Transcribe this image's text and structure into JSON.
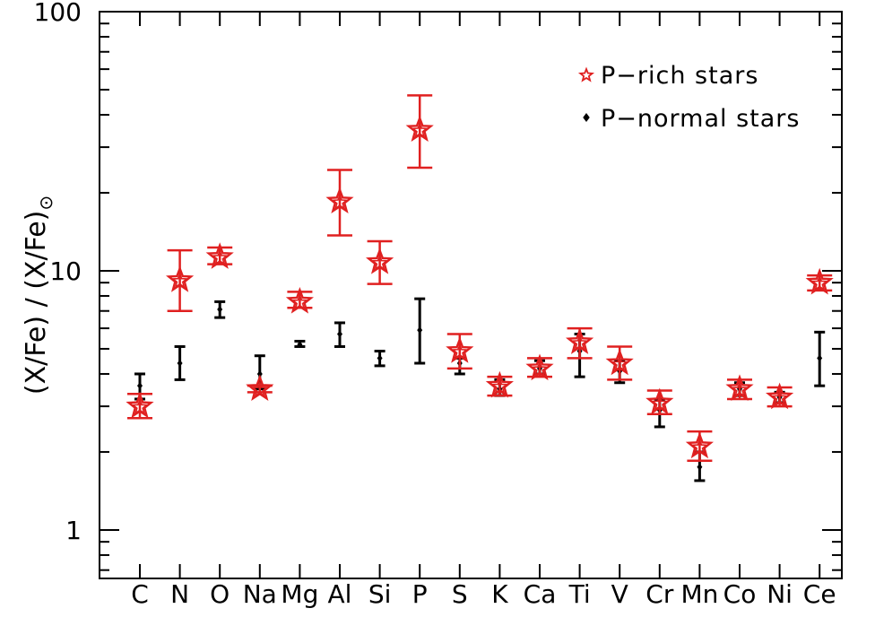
{
  "chart_data": {
    "type": "scatter",
    "ylabel_main": "(X/Fe) / (X/Fe)",
    "ylabel_sub": "⊙",
    "yscale": "log",
    "ylim": [
      0.65,
      100
    ],
    "yticks": [
      1,
      10,
      100
    ],
    "yticks_labels": [
      "1",
      "10",
      "100"
    ],
    "categories": [
      "C",
      "N",
      "O",
      "Na",
      "Mg",
      "Al",
      "Si",
      "P",
      "S",
      "K",
      "Ca",
      "Ti",
      "V",
      "Cr",
      "Mn",
      "Co",
      "Ni",
      "Ce"
    ],
    "legend_position": "top-right",
    "series": [
      {
        "name": "P−rich stars",
        "color": "#e02020",
        "marker": "star",
        "values": [
          3.0,
          9.2,
          11.3,
          3.5,
          7.6,
          18.5,
          10.8,
          35.0,
          4.9,
          3.6,
          4.2,
          5.3,
          4.4,
          3.1,
          2.1,
          3.5,
          3.25,
          9.0
        ],
        "err_low": [
          2.7,
          7.0,
          10.6,
          3.4,
          7.2,
          13.7,
          8.9,
          25.0,
          4.2,
          3.3,
          3.9,
          4.6,
          3.8,
          2.8,
          1.85,
          3.2,
          3.0,
          8.4
        ],
        "err_high": [
          3.35,
          12.0,
          12.3,
          3.6,
          8.3,
          24.5,
          13.0,
          47.5,
          5.7,
          3.9,
          4.6,
          6.0,
          5.1,
          3.45,
          2.4,
          3.8,
          3.55,
          9.6
        ]
      },
      {
        "name": "P−normal stars",
        "color": "#000000",
        "marker": "diamond",
        "values": [
          3.6,
          4.4,
          7.1,
          4.0,
          5.2,
          5.7,
          4.6,
          5.9,
          4.4,
          3.5,
          4.2,
          4.9,
          4.1,
          2.9,
          1.75,
          3.5,
          3.25,
          4.6
        ],
        "err_low": [
          3.2,
          3.8,
          6.6,
          3.5,
          5.1,
          5.1,
          4.3,
          4.4,
          4.0,
          3.3,
          4.0,
          3.9,
          3.7,
          2.5,
          1.55,
          3.3,
          3.1,
          3.6
        ],
        "err_high": [
          4.0,
          5.1,
          7.6,
          4.7,
          5.35,
          6.3,
          4.9,
          7.8,
          4.6,
          3.8,
          4.5,
          5.7,
          4.5,
          3.2,
          2.0,
          3.7,
          3.4,
          5.8
        ]
      }
    ]
  }
}
